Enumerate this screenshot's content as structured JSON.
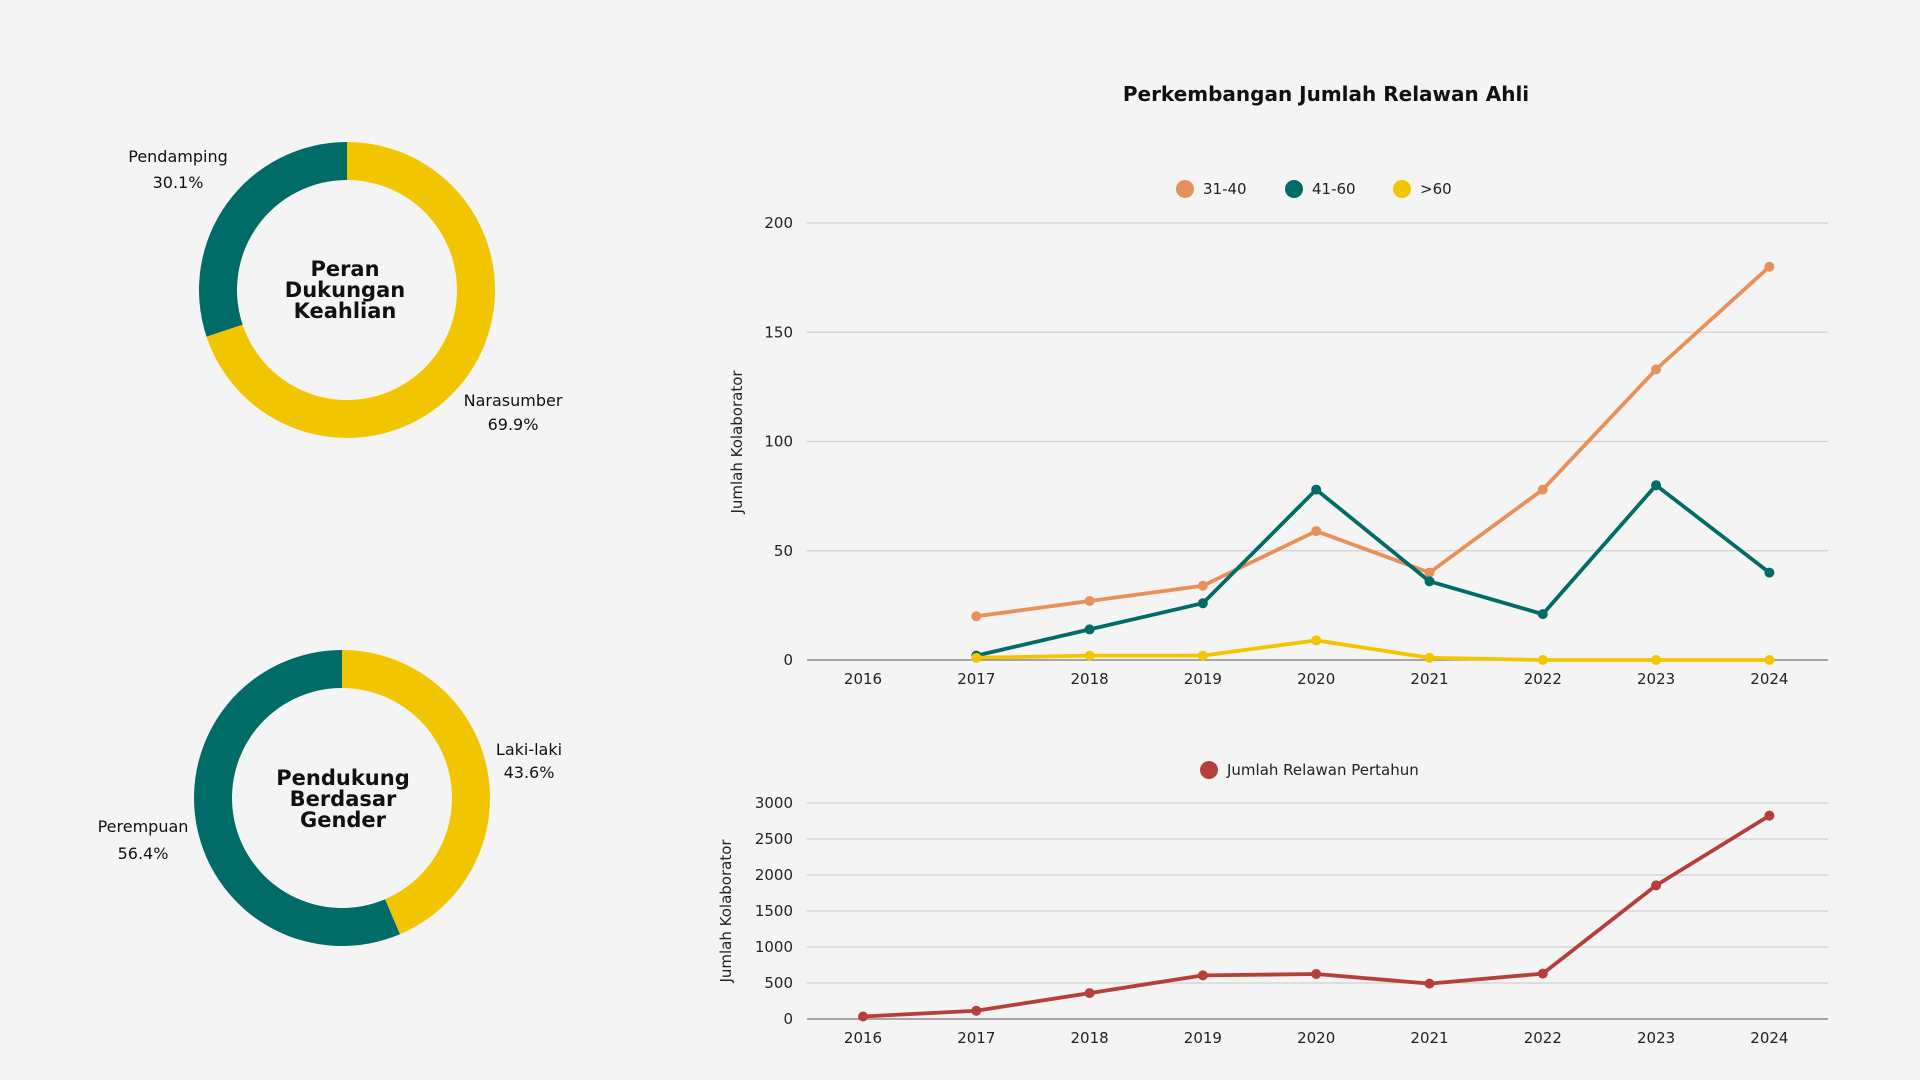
{
  "colors": {
    "background": "#F4F4F4",
    "teal": "#006B67",
    "yellow": "#F1C500",
    "orange": "#E8905A",
    "red": "#B5403A"
  },
  "chart_data": [
    {
      "type": "pie",
      "variant": "donut",
      "title": "Peran Dukungan Keahlian",
      "title_lines": [
        "Peran",
        "Dukungan",
        "Keahlian"
      ],
      "slices": [
        {
          "label": "Narasumber",
          "value": 69.9,
          "display": "69.9%",
          "color": "#F1C500"
        },
        {
          "label": "Pendamping",
          "value": 30.1,
          "display": "30.1%",
          "color": "#006B67"
        }
      ]
    },
    {
      "type": "pie",
      "variant": "donut",
      "title": "Pendukung Berdasar Gender",
      "title_lines": [
        "Pendukung",
        "Berdasar",
        "Gender"
      ],
      "slices": [
        {
          "label": "Laki-laki",
          "value": 43.6,
          "display": "43.6%",
          "color": "#F1C500"
        },
        {
          "label": "Perempuan",
          "value": 56.4,
          "display": "56.4%",
          "color": "#006B67"
        }
      ]
    },
    {
      "type": "line",
      "title": "Perkembangan Jumlah Relawan Ahli",
      "xlabel": "",
      "ylabel": "Jumlah Kolaborator",
      "x": [
        "2016",
        "2017",
        "2018",
        "2019",
        "2020",
        "2021",
        "2022",
        "2023",
        "2024"
      ],
      "ylim": [
        0,
        200
      ],
      "yticks": [
        0,
        50,
        100,
        150,
        200
      ],
      "grid": true,
      "legend_position": "top-center",
      "series": [
        {
          "name": "31-40",
          "color": "#E8905A",
          "values": [
            null,
            20,
            27,
            34,
            59,
            40,
            78,
            133,
            180
          ]
        },
        {
          "name": "41-60",
          "color": "#006B67",
          "values": [
            null,
            2,
            14,
            26,
            78,
            36,
            21,
            80,
            40
          ]
        },
        {
          "name": ">60",
          "color": "#F1C500",
          "values": [
            null,
            1,
            2,
            2,
            9,
            1,
            0,
            0,
            0
          ]
        }
      ]
    },
    {
      "type": "line",
      "title": "",
      "xlabel": "",
      "ylabel": "Jumlah Kolaborator",
      "x": [
        "2016",
        "2017",
        "2018",
        "2019",
        "2020",
        "2021",
        "2022",
        "2023",
        "2024"
      ],
      "ylim": [
        0,
        3000
      ],
      "yticks": [
        0,
        500,
        1000,
        1500,
        2000,
        2500,
        3000
      ],
      "grid": true,
      "legend_position": "top-center",
      "series": [
        {
          "name": "Jumlah Relawan Pertahun",
          "color": "#B5403A",
          "values": [
            35,
            115,
            360,
            606,
            625,
            491,
            630,
            1856,
            2824
          ]
        }
      ]
    }
  ]
}
